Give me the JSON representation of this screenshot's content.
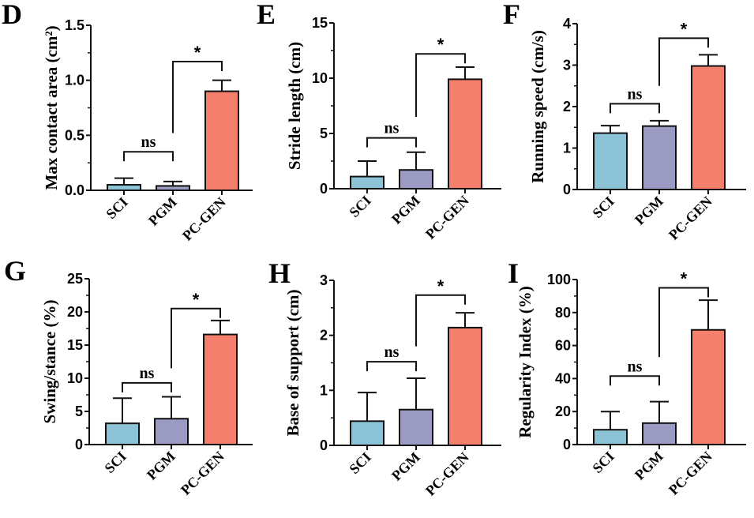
{
  "figure": {
    "categories": [
      "SCI",
      "PGM",
      "PC-GEN"
    ],
    "colors": {
      "SCI": "#8dc3d6",
      "PGM": "#9a9ac3",
      "PC-GEN": "#f47f6c",
      "stroke": "#111111"
    }
  },
  "chart_data": [
    {
      "type": "bar",
      "panel": "D",
      "ylabel": "Max contact area (cm²)",
      "categories": [
        "SCI",
        "PGM",
        "PC-GEN"
      ],
      "values": [
        0.05,
        0.04,
        0.9
      ],
      "errors": [
        0.06,
        0.04,
        0.1
      ],
      "ylim": [
        0,
        1.5
      ],
      "yticks": [
        "0.0",
        "0.5",
        "1.0",
        "1.5"
      ],
      "ytick_values": [
        0,
        0.5,
        1.0,
        1.5
      ],
      "minor_step": 0.25,
      "brackets": [
        {
          "from": 0,
          "to": 1,
          "label": "ns",
          "y": 0.35
        },
        {
          "from": 1,
          "to": 2,
          "label": "*",
          "y": 1.17,
          "left_drop_to": 0.52
        }
      ]
    },
    {
      "type": "bar",
      "panel": "E",
      "ylabel": "Stride length (cm)",
      "categories": [
        "SCI",
        "PGM",
        "PC-GEN"
      ],
      "values": [
        1.1,
        1.7,
        9.9
      ],
      "errors": [
        1.4,
        1.6,
        1.1
      ],
      "ylim": [
        0,
        15
      ],
      "yticks": [
        "0",
        "5",
        "10",
        "15"
      ],
      "ytick_values": [
        0,
        5,
        10,
        15
      ],
      "minor_step": 2.5,
      "brackets": [
        {
          "from": 0,
          "to": 1,
          "label": "ns",
          "y": 4.6
        },
        {
          "from": 1,
          "to": 2,
          "label": "*",
          "y": 12.2,
          "left_drop_to": 6.5
        }
      ]
    },
    {
      "type": "bar",
      "panel": "F",
      "ylabel": "Running speed (cm/s)",
      "categories": [
        "SCI",
        "PGM",
        "PC-GEN"
      ],
      "values": [
        1.36,
        1.53,
        2.98
      ],
      "errors": [
        0.18,
        0.13,
        0.27
      ],
      "ylim": [
        0,
        4
      ],
      "yticks": [
        "0",
        "1",
        "2",
        "3",
        "4"
      ],
      "ytick_values": [
        0,
        1,
        2,
        3,
        4
      ],
      "minor_step": 0.5,
      "brackets": [
        {
          "from": 0,
          "to": 1,
          "label": "ns",
          "y": 2.07
        },
        {
          "from": 1,
          "to": 2,
          "label": "*",
          "y": 3.65,
          "left_drop_to": 2.5
        }
      ]
    },
    {
      "type": "bar",
      "panel": "G",
      "ylabel": "Swing/stance (%)",
      "categories": [
        "SCI",
        "PGM",
        "PC-GEN"
      ],
      "values": [
        3.2,
        3.9,
        16.6
      ],
      "errors": [
        3.8,
        3.3,
        2.1
      ],
      "ylim": [
        0,
        25
      ],
      "yticks": [
        "0",
        "5",
        "10",
        "15",
        "20",
        "25"
      ],
      "ytick_values": [
        0,
        5,
        10,
        15,
        20,
        25
      ],
      "minor_step": 2.5,
      "brackets": [
        {
          "from": 0,
          "to": 1,
          "label": "ns",
          "y": 9.3
        },
        {
          "from": 1,
          "to": 2,
          "label": "*",
          "y": 20.5,
          "left_drop_to": 11.5
        }
      ]
    },
    {
      "type": "bar",
      "panel": "H",
      "ylabel": "Base of support (cm)",
      "categories": [
        "SCI",
        "PGM",
        "PC-GEN"
      ],
      "values": [
        0.44,
        0.65,
        2.14
      ],
      "errors": [
        0.52,
        0.57,
        0.27
      ],
      "ylim": [
        0,
        3
      ],
      "yticks": [
        "0",
        "1",
        "2",
        "3"
      ],
      "ytick_values": [
        0,
        1,
        2,
        3
      ],
      "minor_step": 0.5,
      "brackets": [
        {
          "from": 0,
          "to": 1,
          "label": "ns",
          "y": 1.52
        },
        {
          "from": 1,
          "to": 2,
          "label": "*",
          "y": 2.73,
          "left_drop_to": 1.8
        }
      ]
    },
    {
      "type": "bar",
      "panel": "I",
      "ylabel": "Regularity Index (%)",
      "categories": [
        "SCI",
        "PGM",
        "PC-GEN"
      ],
      "values": [
        9,
        13,
        69.5
      ],
      "errors": [
        11,
        13,
        18
      ],
      "ylim": [
        0,
        100
      ],
      "yticks": [
        "0",
        "20",
        "40",
        "60",
        "80",
        "100"
      ],
      "ytick_values": [
        0,
        20,
        40,
        60,
        80,
        100
      ],
      "minor_step": 10,
      "brackets": [
        {
          "from": 0,
          "to": 1,
          "label": "ns",
          "y": 41.5
        },
        {
          "from": 1,
          "to": 2,
          "label": "*",
          "y": 95,
          "left_drop_to": 53
        }
      ]
    }
  ]
}
